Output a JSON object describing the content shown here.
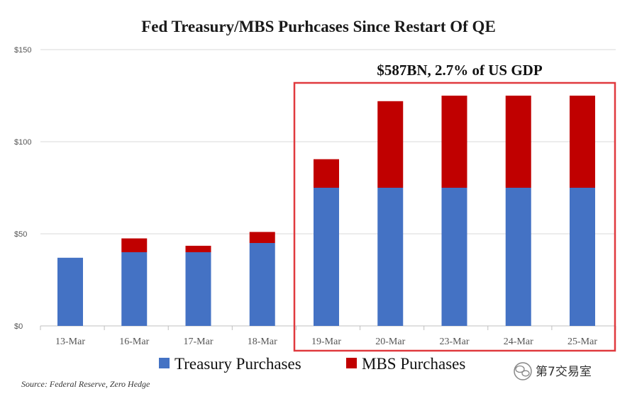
{
  "chart_data": {
    "type": "bar",
    "stacked": true,
    "title": "Fed Treasury/MBS Purhcases Since Restart Of QE",
    "categories": [
      "13-Mar",
      "16-Mar",
      "17-Mar",
      "18-Mar",
      "19-Mar",
      "20-Mar",
      "23-Mar",
      "24-Mar",
      "25-Mar"
    ],
    "series": [
      {
        "name": "Treasury Purchases",
        "color": "#4472c4",
        "values": [
          37,
          40,
          40,
          45,
          75,
          75,
          75,
          75,
          75
        ]
      },
      {
        "name": "MBS Purchases",
        "color": "#c00000",
        "values": [
          0,
          7.5,
          3.5,
          6,
          15.5,
          47,
          50,
          50,
          50
        ]
      }
    ],
    "ylim": [
      0,
      150
    ],
    "yticks": [
      0,
      50,
      100,
      150
    ],
    "ytick_labels": [
      "$0",
      "$50",
      "$100",
      "$150"
    ],
    "ylabel": "",
    "xlabel": "",
    "grid": true,
    "legend_position": "bottom",
    "annotation": {
      "text": "$587BN, 2.7% of US GDP",
      "highlight_start_category": "19-Mar",
      "highlight_end_category": "25-Mar",
      "box_color": "#e0393e"
    },
    "source": "Source: Federal Reserve, Zero Hedge"
  },
  "watermark": {
    "text": "第7交易室",
    "icon": "wechat-icon"
  }
}
